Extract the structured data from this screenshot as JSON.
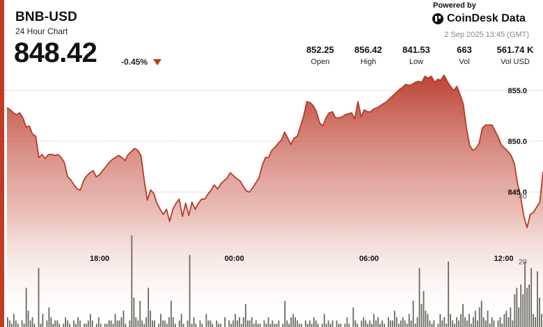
{
  "header": {
    "symbol": "BNB-USD",
    "period": "24 Hour Chart",
    "price": "848.42",
    "change": "-0.45%"
  },
  "brand": {
    "powered_by": "Powered by",
    "name": "CoinDesk Data",
    "timestamp": "2 Sep 2025 13:45 (GMT)"
  },
  "stats": [
    {
      "value": "852.25",
      "label": "Open"
    },
    {
      "value": "856.42",
      "label": "High"
    },
    {
      "value": "841.53",
      "label": "Low"
    },
    {
      "value": "663",
      "label": "Vol"
    },
    {
      "value": "561.74 K",
      "label": "Vol USD"
    }
  ],
  "colors": {
    "accent": "#c23b22",
    "line": "#b83a2a",
    "volume_bar": "#6b6b62",
    "grid": "#c8c8c8"
  },
  "chart_data": {
    "type": "area",
    "xlabel": "",
    "ylabel": "",
    "x_ticks": [
      "18:00",
      "00:00",
      "06:00",
      "12:00"
    ],
    "x_tick_hours": [
      4.25,
      10.25,
      16.25,
      22.25
    ],
    "y_ticks": [
      845,
      850,
      855
    ],
    "ylim": [
      841.0,
      856.5
    ],
    "xlim": [
      0,
      24
    ],
    "grid": true,
    "series": [
      {
        "values": [
          853.3,
          853.1,
          852.8,
          852.6,
          852.8,
          852.3,
          851.4,
          851.5,
          850.7,
          850.5,
          848.4,
          848.7,
          848.3,
          848.7,
          848.7,
          848.6,
          848.7,
          848.4,
          847.9,
          846.5,
          846.2,
          845.7,
          845.3,
          845.2,
          846.1,
          846.6,
          846.9,
          847.1,
          846.5,
          846.7,
          847.1,
          847.5,
          847.9,
          848.2,
          848.4,
          848.6,
          848.4,
          848.1,
          848.7,
          849.0,
          849.3,
          849.1,
          848.6,
          846.2,
          844.2,
          845.2,
          844.9,
          843.9,
          843.3,
          842.8,
          843.3,
          842.1,
          843.3,
          843.9,
          844.3,
          842.6,
          843.9,
          842.7,
          844.0,
          843.3,
          843.9,
          844.3,
          844.3,
          844.8,
          845.2,
          845.7,
          845.3,
          845.8,
          846.1,
          846.4,
          846.9,
          846.6,
          846.3,
          846.1,
          845.6,
          845.1,
          845.0,
          845.4,
          845.9,
          846.4,
          847.6,
          848.4,
          848.4,
          849.1,
          849.4,
          849.8,
          850.1,
          850.9,
          850.3,
          849.7,
          850.3,
          850.5,
          851.5,
          852.5,
          853.9,
          853.8,
          853.5,
          852.9,
          851.8,
          851.5,
          852.3,
          852.8,
          852.9,
          852.3,
          852.3,
          852.4,
          852.6,
          852.7,
          852.8,
          852.2,
          853.9,
          852.4,
          853.1,
          852.9,
          852.9,
          853.2,
          853.3,
          853.5,
          853.7,
          853.9,
          854.2,
          854.5,
          854.8,
          855.1,
          855.3,
          855.6,
          855.5,
          855.6,
          855.8,
          855.9,
          855.8,
          856.4,
          856.2,
          856.4,
          855.8,
          856.1,
          856.0,
          856.5,
          855.9,
          855.4,
          855.0,
          855.4,
          854.6,
          853.7,
          851.3,
          849.6,
          849.1,
          849.3,
          849.8,
          851.3,
          851.6,
          851.6,
          851.6,
          851.0,
          850.4,
          849.6,
          849.3,
          849.0,
          848.6,
          847.8,
          845.9,
          844.5,
          842.6,
          841.5,
          842.8,
          843.0,
          843.5,
          844.0,
          847.0
        ]
      }
    ],
    "volume": {
      "y_ticks": [
        20,
        40
      ],
      "values": [
        3,
        2,
        1,
        4,
        2,
        1,
        0,
        2,
        1,
        12,
        5,
        2,
        3,
        1,
        0,
        18,
        1,
        4,
        0,
        2,
        6,
        3,
        1,
        2,
        2,
        1,
        0,
        1,
        3,
        2,
        1,
        0,
        2,
        1,
        3,
        2,
        0,
        1,
        1,
        2,
        4,
        2,
        0,
        1,
        3,
        1,
        0,
        1,
        1,
        2,
        2,
        1,
        4,
        2,
        2,
        3,
        5,
        1,
        0,
        2,
        28,
        9,
        3,
        2,
        8,
        2,
        1,
        3,
        12,
        5,
        2,
        2,
        0,
        1,
        4,
        2,
        2,
        1,
        3,
        8,
        3,
        1,
        0,
        2,
        4,
        1,
        0,
        2,
        22,
        1,
        3,
        1,
        0,
        2,
        1,
        0,
        4,
        2,
        2,
        1,
        0,
        2,
        1,
        1,
        0,
        3,
        0,
        2,
        1,
        2,
        4,
        2,
        3,
        1,
        3,
        7,
        2,
        2,
        3,
        1,
        2,
        1,
        1,
        0,
        2,
        1,
        3,
        1,
        2,
        1,
        1,
        2,
        0,
        1,
        8,
        2,
        1,
        3,
        4,
        3,
        2,
        1,
        1,
        0,
        2,
        1,
        2,
        1,
        3,
        2,
        1,
        0,
        1,
        4,
        1,
        2,
        1,
        2,
        0,
        2,
        1,
        1,
        0,
        1,
        3,
        1,
        0,
        6,
        2,
        1,
        0,
        2,
        3,
        2,
        1,
        2,
        1,
        4,
        2,
        3,
        1,
        2,
        1,
        0,
        3,
        2,
        2,
        5,
        3,
        1,
        2,
        3,
        2,
        1,
        4,
        2,
        8,
        1,
        3,
        18,
        7,
        11,
        5,
        4,
        2,
        1,
        2,
        0,
        1,
        4,
        2,
        3,
        1,
        20,
        4,
        2,
        1,
        3,
        2,
        4,
        7,
        3,
        2,
        4,
        1,
        3,
        5,
        2,
        6,
        8,
        3,
        2,
        5,
        1,
        3,
        2,
        0,
        2,
        3,
        1,
        4,
        5,
        3,
        6,
        2,
        10,
        12,
        6,
        13,
        10,
        20,
        12,
        13,
        18,
        4,
        3,
        17,
        9,
        4
      ]
    }
  }
}
